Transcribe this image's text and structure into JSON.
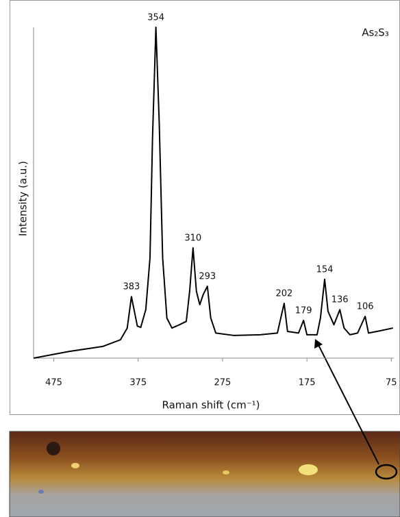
{
  "chart_data": {
    "type": "line",
    "title": "As₂S₃",
    "x_label": "Raman shift (cm⁻¹)",
    "y_label": "Intensity (a.u.)",
    "xlim": [
      499,
      72
    ],
    "xticks": [
      475,
      375,
      275,
      175,
      75
    ],
    "ylim": [
      0,
      100
    ],
    "color": "#000000",
    "x": [
      499,
      457,
      417,
      396,
      388,
      383,
      376,
      372,
      366,
      361,
      358,
      354,
      350,
      346,
      341,
      335,
      326,
      318,
      314,
      310,
      306,
      302,
      298,
      293,
      289,
      283,
      262,
      230,
      210,
      206,
      202,
      198,
      185,
      179,
      175,
      163,
      159,
      154,
      150,
      143,
      136,
      131,
      124,
      115,
      106,
      102,
      88,
      73
    ],
    "values": [
      0,
      2,
      3.5,
      5.5,
      9,
      18.4,
      9.6,
      9.2,
      14.5,
      30,
      66,
      99,
      70,
      30,
      12,
      9,
      10,
      11,
      20,
      33,
      20,
      16,
      19,
      21.5,
      12,
      7.5,
      6.8,
      7,
      7.5,
      12,
      16.4,
      8,
      7.5,
      11.3,
      7,
      7,
      12,
      23.6,
      14,
      10,
      14.5,
      9,
      7,
      7.5,
      12.5,
      7.5,
      8.2,
      9
    ],
    "peak_labels": [
      383,
      354,
      310,
      293,
      202,
      179,
      154,
      136,
      106
    ]
  }
}
